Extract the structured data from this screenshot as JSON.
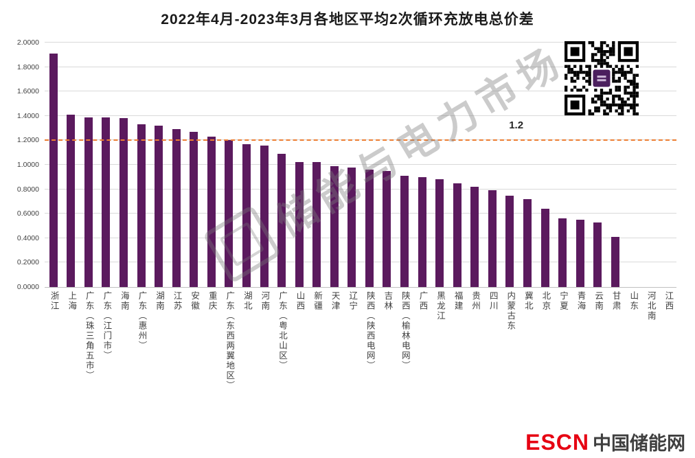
{
  "title": "2022年4月-2023年3月各地区平均2次循环充放电总价差",
  "chart_data": {
    "type": "bar",
    "title": "2022年4月-2023年3月各地区平均2次循环充放电总价差",
    "categories": [
      "浙江",
      "上海",
      "广东（珠三角五市）",
      "广东（江门市）",
      "海南",
      "广东（惠州）",
      "湖南",
      "江苏",
      "安徽",
      "重庆",
      "广东（东西两翼地区）",
      "湖北",
      "河南",
      "广东（粤北山区）",
      "山西",
      "新疆",
      "天津",
      "辽宁",
      "陕西（陕西电网）",
      "吉林",
      "陕西（榆林电网）",
      "广西",
      "黑龙江",
      "福建",
      "贵州",
      "四川",
      "内蒙古东",
      "冀北",
      "北京",
      "宁夏",
      "青海",
      "云南",
      "甘肃",
      "山东",
      "河北南",
      "江西"
    ],
    "values": [
      1.91,
      1.41,
      1.39,
      1.39,
      1.38,
      1.33,
      1.32,
      1.29,
      1.27,
      1.23,
      1.2,
      1.17,
      1.16,
      1.09,
      1.02,
      1.02,
      0.99,
      0.98,
      0.96,
      0.95,
      0.91,
      0.9,
      0.88,
      0.85,
      0.82,
      0.79,
      0.75,
      0.72,
      0.64,
      0.56,
      0.55,
      0.53,
      0.41,
      0,
      0,
      0
    ],
    "xlabel": "",
    "ylabel": "",
    "ylim": [
      0,
      2
    ],
    "yticks": [
      "0.0000",
      "0.2000",
      "0.4000",
      "0.6000",
      "0.8000",
      "1.0000",
      "1.2000",
      "1.4000",
      "1.6000",
      "1.8000",
      "2.0000"
    ],
    "grid": true,
    "legend_position": "none",
    "bar_color": "#5B1A5E",
    "reference_line": {
      "value": 1.2,
      "label": "1.2",
      "color": "#ED7D31",
      "style": "dashed"
    }
  },
  "watermark": {
    "text": "储能与电力市场"
  },
  "qr_code": {
    "name": "qr-code"
  },
  "footer": {
    "brand": "ESCN",
    "site": "中国储能网",
    "brand_color": "#E60012",
    "site_color": "#3F3F3F"
  }
}
